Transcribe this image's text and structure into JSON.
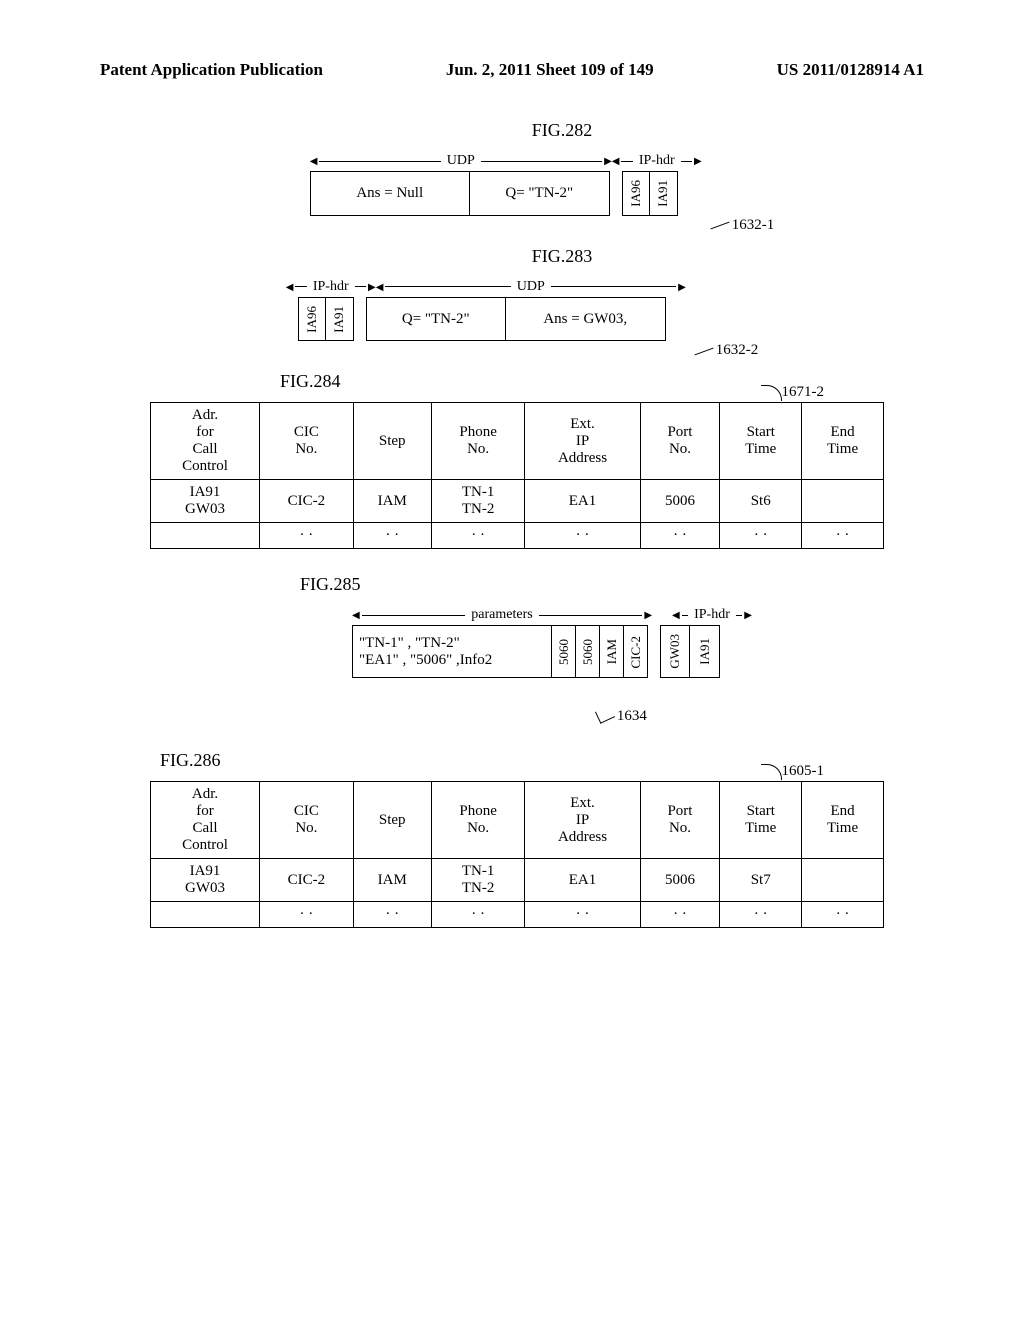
{
  "header": {
    "left": "Patent Application Publication",
    "center": "Jun. 2, 2011  Sheet 109 of 149",
    "right": "US 2011/0128914 A1"
  },
  "fig282": {
    "label": "FIG.282",
    "bracket_udp": "UDP",
    "bracket_ip": "IP-hdr",
    "cells": {
      "ans": "Ans = Null",
      "q": "Q= \"TN-2\"",
      "ip1": "IA96",
      "ip2": "IA91"
    },
    "ref": "1632-1"
  },
  "fig283": {
    "label": "FIG.283",
    "bracket_udp": "UDP",
    "bracket_ip": "IP-hdr",
    "cells": {
      "ip1": "IA96",
      "ip2": "IA91",
      "q": "Q= \"TN-2\"",
      "ans": "Ans = GW03,"
    },
    "ref": "1632-2"
  },
  "fig284": {
    "label": "FIG.284",
    "ref": "1671-2",
    "columns": [
      "Adr. for Call Control",
      "CIC No.",
      "Step",
      "Phone No.",
      "Ext. IP Address",
      "Port No.",
      "Start Time",
      "End Time"
    ],
    "rows": [
      [
        "IA91\nGW03",
        "CIC-2",
        "IAM",
        "TN-1\nTN-2",
        "EA1",
        "5006",
        "St6",
        ""
      ],
      [
        "",
        "· ·",
        "· ·",
        "· ·",
        "· ·",
        "· ·",
        "· ·",
        "· ·"
      ]
    ]
  },
  "fig285": {
    "label": "FIG.285",
    "bracket_params": "parameters",
    "bracket_ip": "IP-hdr",
    "cells": {
      "params": "\"TN-1\" , \"TN-2\"\n\"EA1\" , \"5006\" ,Info2",
      "p1": "5060",
      "p2": "5060",
      "p3": "IAM",
      "p4": "CIC-2",
      "ip1": "GW03",
      "ip2": "IA91"
    },
    "ref": "1634"
  },
  "fig286": {
    "label": "FIG.286",
    "ref": "1605-1",
    "columns": [
      "Adr. for Call Control",
      "CIC No.",
      "Step",
      "Phone No.",
      "Ext. IP Address",
      "Port No.",
      "Start Time",
      "End Time"
    ],
    "rows": [
      [
        "IA91\nGW03",
        "CIC-2",
        "IAM",
        "TN-1\nTN-2",
        "EA1",
        "5006",
        "St7",
        ""
      ],
      [
        "",
        "· ·",
        "· ·",
        "· ·",
        "· ·",
        "· ·",
        "· ·",
        "· ·"
      ]
    ]
  }
}
